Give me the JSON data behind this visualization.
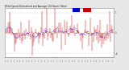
{
  "title": "Wind Speed: Normalized and Average (24 Hours) (New)",
  "bg_color": "#e8e8e8",
  "plot_bg": "#ffffff",
  "bar_color": "#cc0000",
  "avg_color": "#0000cc",
  "ylim": [
    -6,
    6
  ],
  "n_points": 144,
  "seed": 42,
  "grid_color": "#999999",
  "yticks": [
    -5,
    0,
    5
  ],
  "fig_width": 1.6,
  "fig_height": 0.87,
  "dpi": 100
}
